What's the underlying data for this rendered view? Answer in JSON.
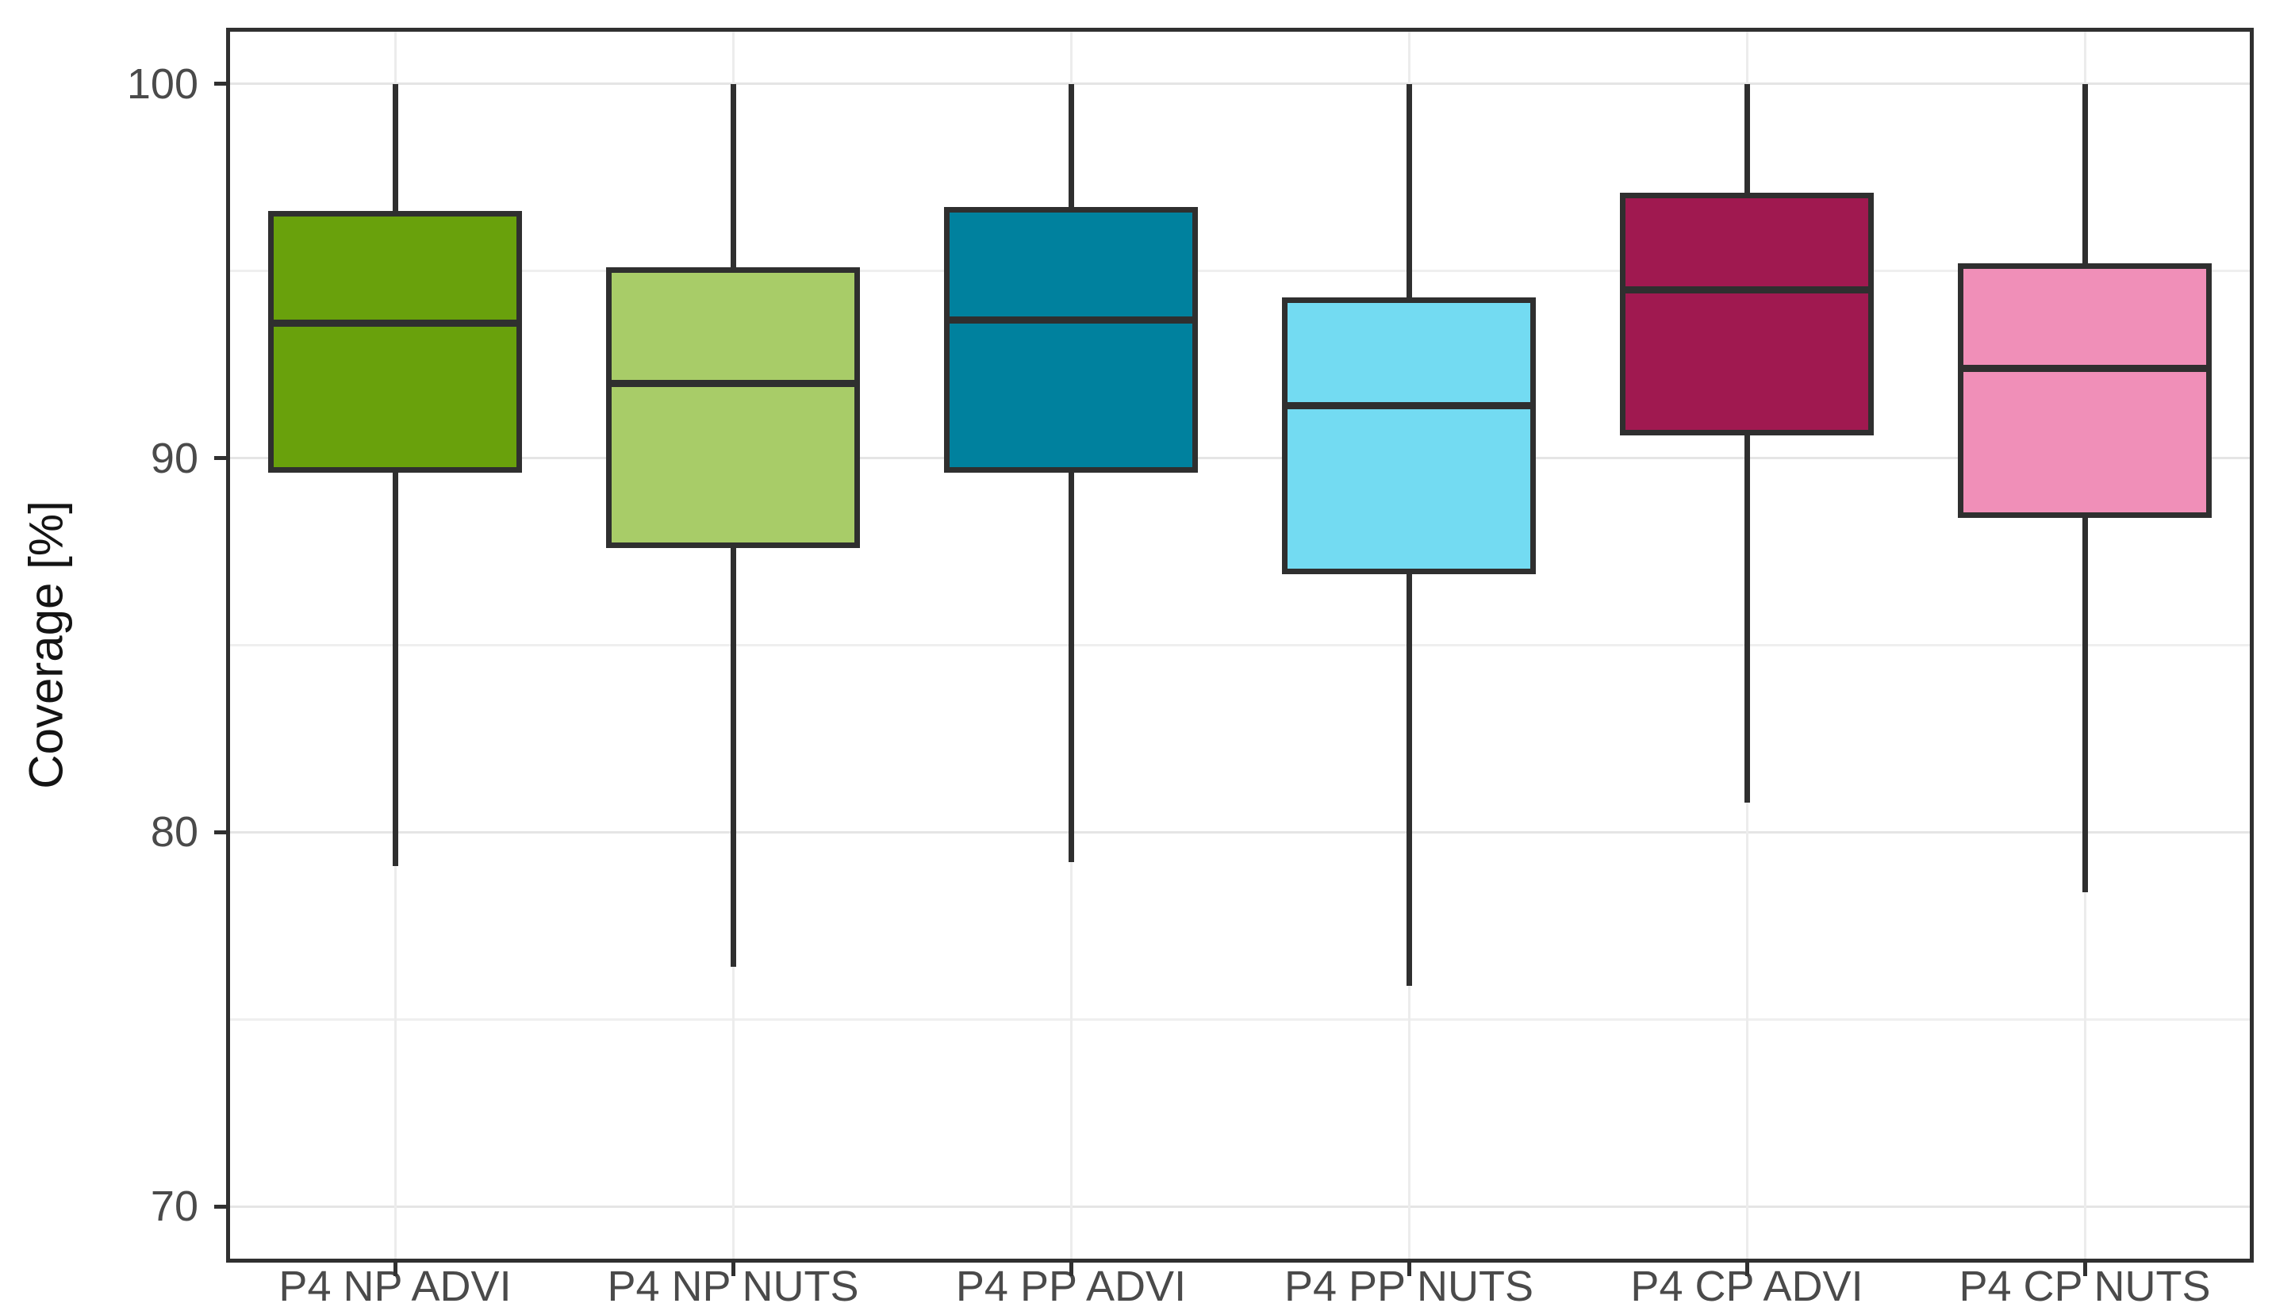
{
  "chart_data": {
    "type": "boxplot",
    "title": "",
    "xlabel": "",
    "ylabel": "Coverage [%]",
    "categories": [
      "P4 NP ADVI",
      "P4 NP NUTS",
      "P4 PP ADVI",
      "P4 PP NUTS",
      "P4 CP ADVI",
      "P4 CP NUTS"
    ],
    "series": [
      {
        "name": "P4 NP ADVI",
        "whisker_low": 79.1,
        "q1": 89.6,
        "median": 93.6,
        "q3": 96.6,
        "whisker_high": 100.0,
        "fill": "#69A10C"
      },
      {
        "name": "P4 NP NUTS",
        "whisker_low": 76.4,
        "q1": 87.6,
        "median": 92.0,
        "q3": 95.1,
        "whisker_high": 100.0,
        "fill": "#A8CC68"
      },
      {
        "name": "P4 PP ADVI",
        "whisker_low": 79.2,
        "q1": 89.6,
        "median": 93.7,
        "q3": 96.7,
        "whisker_high": 100.0,
        "fill": "#00819E"
      },
      {
        "name": "P4 PP NUTS",
        "whisker_low": 75.9,
        "q1": 86.9,
        "median": 91.4,
        "q3": 94.3,
        "whisker_high": 100.0,
        "fill": "#73DBF2"
      },
      {
        "name": "P4 CP ADVI",
        "whisker_low": 80.8,
        "q1": 90.6,
        "median": 94.5,
        "q3": 97.1,
        "whisker_high": 100.0,
        "fill": "#A01950"
      },
      {
        "name": "P4 CP NUTS",
        "whisker_low": 78.4,
        "q1": 88.4,
        "median": 92.4,
        "q3": 95.2,
        "whisker_high": 100.0,
        "fill": "#F08FB8"
      }
    ],
    "ylim": [
      68.5,
      101.5
    ],
    "yticks": [
      100,
      90,
      80,
      70
    ],
    "ytick_labels": [
      "100",
      "90",
      "80",
      "70"
    ],
    "yticks_minor": [
      95,
      85,
      75
    ],
    "grid": true,
    "legend": false,
    "colors": {
      "box_edge": "#2F2F2F",
      "median_line": "#2F2F2F",
      "whisker_line": "#2F2F2F",
      "axis_border": "#303030",
      "grid_major": "#E5E5E5",
      "grid_minor": "#EFEFEF",
      "grid_vertical": "#ECECEC",
      "tick_mark": "#303030",
      "tick_label": "#4A4A4A",
      "axis_title": "#141414",
      "background": "#FFFFFF"
    }
  }
}
